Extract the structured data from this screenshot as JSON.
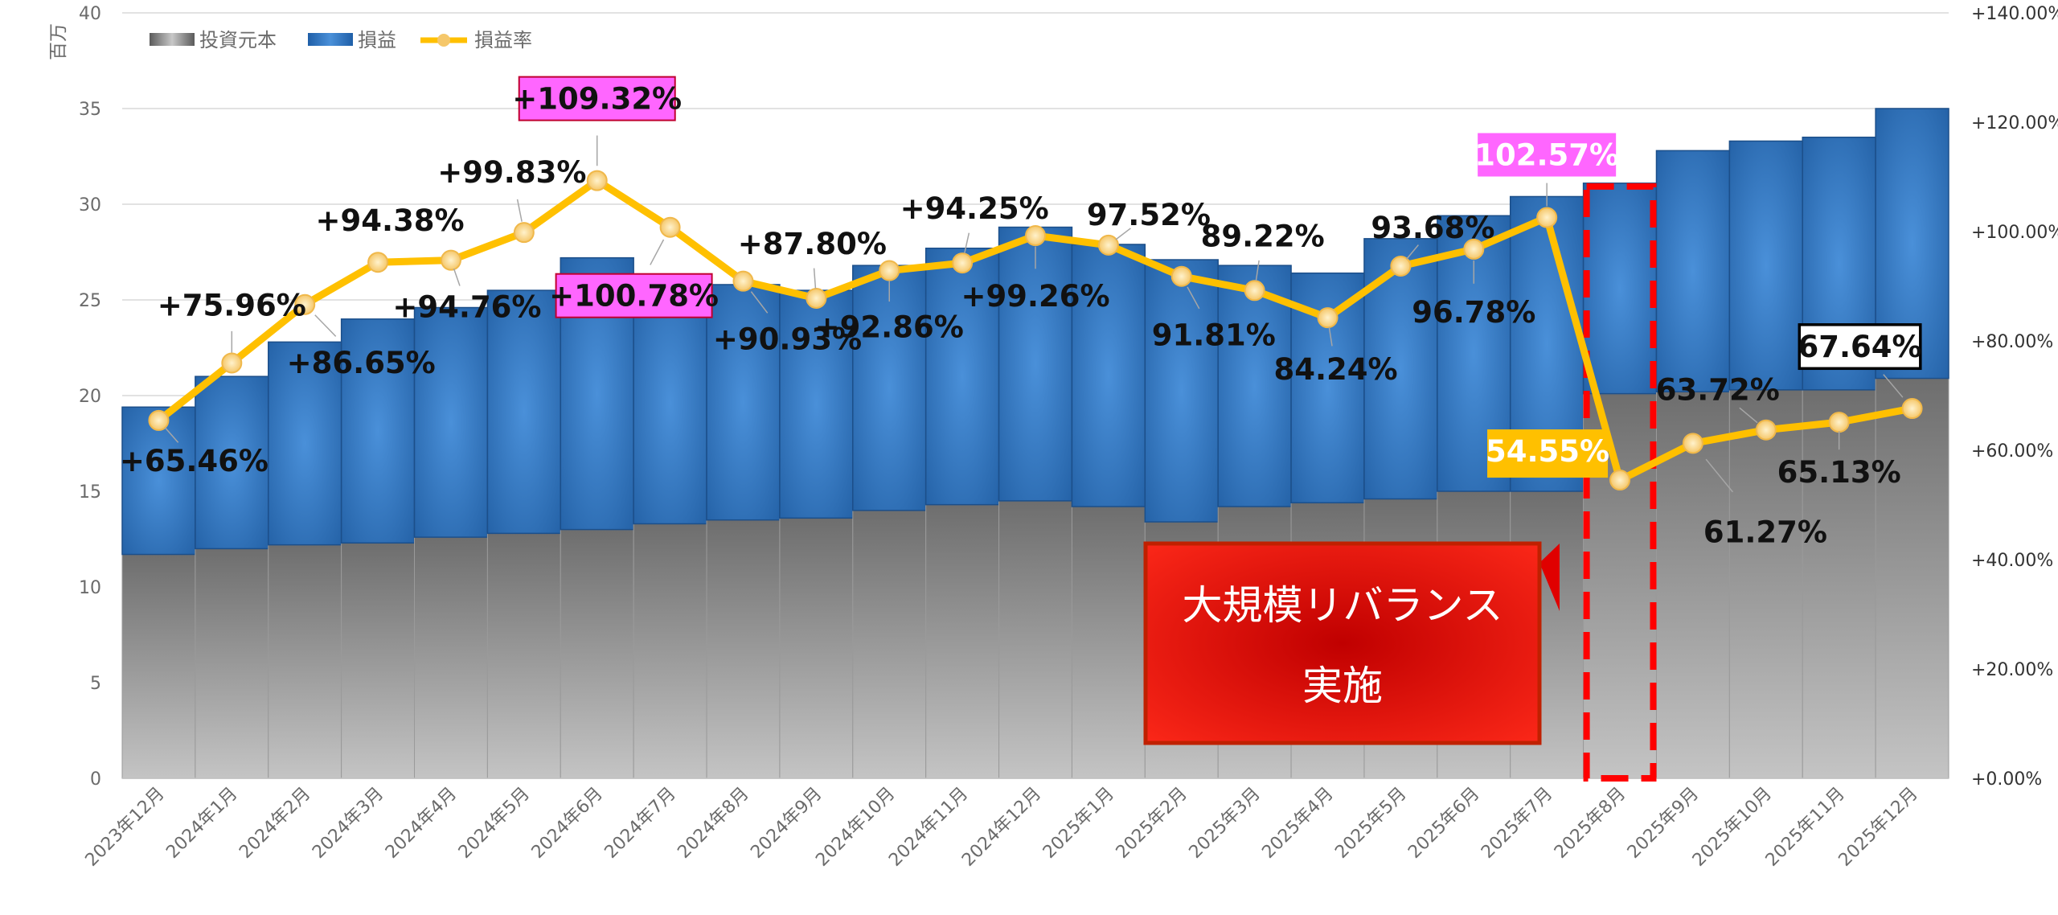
{
  "chart_data": {
    "type": "bar+line",
    "left_axis": {
      "unit": "百万",
      "min": 0,
      "max": 40,
      "ticks": [
        0,
        5,
        10,
        15,
        20,
        25,
        30,
        35,
        40
      ]
    },
    "right_axis": {
      "min": 0,
      "max": 140,
      "ticks": [
        "+0.00%",
        "+20.00%",
        "+40.00%",
        "+60.00%",
        "+80.00%",
        "+100.00%",
        "+120.00%",
        "+140.00%"
      ]
    },
    "categories": [
      "2023年12月",
      "2024年1月",
      "2024年2月",
      "2024年3月",
      "2024年4月",
      "2024年5月",
      "2024年6月",
      "2024年7月",
      "2024年8月",
      "2024年9月",
      "2024年10月",
      "2024年11月",
      "2024年12月",
      "2025年1月",
      "2025年2月",
      "2025年3月",
      "2025年4月",
      "2025年5月",
      "2025年6月",
      "2025年7月",
      "2025年8月",
      "2025年9月",
      "2025年10月",
      "2025年11月",
      "2025年12月"
    ],
    "series": [
      {
        "name": "投資元本",
        "type": "stacked-bar",
        "color": "#8c8c8c",
        "values": [
          11.7,
          12.0,
          12.2,
          12.3,
          12.6,
          12.8,
          13.0,
          13.3,
          13.5,
          13.6,
          14.0,
          14.3,
          14.5,
          14.2,
          13.4,
          14.2,
          14.4,
          14.6,
          15.0,
          15.0,
          20.1,
          20.2,
          20.3,
          20.3,
          20.9
        ]
      },
      {
        "name": "損益",
        "type": "stacked-bar",
        "color": "#2e75b6",
        "values": [
          7.7,
          9.0,
          10.6,
          11.7,
          12.0,
          12.7,
          14.2,
          12.6,
          12.3,
          11.9,
          12.8,
          13.4,
          14.3,
          13.7,
          13.7,
          12.6,
          12.0,
          13.6,
          14.4,
          15.4,
          11.0,
          12.6,
          13.0,
          13.2,
          14.1
        ]
      },
      {
        "name": "損益率",
        "type": "line",
        "color": "#ffc000",
        "values": [
          65.46,
          75.96,
          86.65,
          94.38,
          94.76,
          99.83,
          109.32,
          100.78,
          90.93,
          87.8,
          92.86,
          94.25,
          99.26,
          97.52,
          91.81,
          89.22,
          84.24,
          93.68,
          96.78,
          102.57,
          54.55,
          61.27,
          63.72,
          65.13,
          67.64
        ],
        "labels": [
          "+65.46%",
          "+75.96%",
          "+86.65%",
          "+94.38%",
          "+94.76%",
          "+99.83%",
          "+109.32%",
          "+100.78%",
          "+90.93%",
          "+87.80%",
          "+92.86%",
          "+94.25%",
          "+99.26%",
          "97.52%",
          "91.81%",
          "89.22%",
          "84.24%",
          "93.68%",
          "96.78%",
          "102.57%",
          "54.55%",
          "61.27%",
          "63.72%",
          "65.13%",
          "67.64%"
        ]
      }
    ],
    "label_styles": {
      "6": "magenta",
      "7": "magenta",
      "19": "magenta-white",
      "20": "gold-white",
      "24": "white-box"
    },
    "annotation": {
      "text_line1": "大規模リバランス",
      "text_line2": "実施",
      "highlight_category": "2025年8月",
      "box_color": "#e00000",
      "dash_color": "#ff0000"
    },
    "colors": {
      "magenta": "#ff66ff",
      "gold": "#ffc000",
      "blue": "#2e75b6"
    },
    "legend_position": "top-left"
  }
}
